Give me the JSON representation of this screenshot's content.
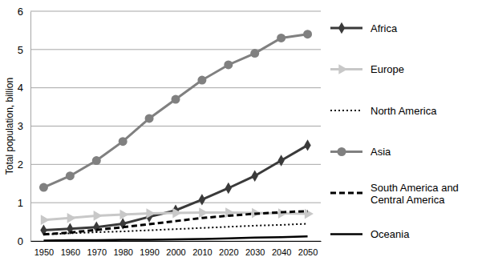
{
  "chart_data": {
    "type": "line",
    "y_label": "Total population, billion",
    "categories": [
      "1950",
      "1960",
      "1970",
      "1980",
      "1990",
      "2000",
      "2010",
      "2020",
      "2030",
      "2040",
      "2050"
    ],
    "ylim": [
      0,
      6
    ],
    "yticks": [
      0,
      1,
      2,
      3,
      4,
      5,
      6
    ],
    "grid": true,
    "legend": "right",
    "series": [
      {
        "name": "Africa",
        "color": "#3a3a3a",
        "marker": "diamond",
        "line_style": "solid",
        "values": [
          0.28,
          0.32,
          0.36,
          0.45,
          0.63,
          0.8,
          1.08,
          1.38,
          1.7,
          2.1,
          2.5
        ]
      },
      {
        "name": "Europe",
        "color": "#c8c8c8",
        "marker": "arrow",
        "line_style": "solid",
        "values": [
          0.55,
          0.6,
          0.66,
          0.69,
          0.72,
          0.73,
          0.74,
          0.74,
          0.73,
          0.72,
          0.71
        ]
      },
      {
        "name": "North America",
        "color": "#000000",
        "marker": "none",
        "line_style": "dotted",
        "values": [
          0.17,
          0.2,
          0.23,
          0.25,
          0.28,
          0.31,
          0.34,
          0.37,
          0.4,
          0.42,
          0.45
        ]
      },
      {
        "name": "Asia",
        "color": "#808080",
        "marker": "circle",
        "line_style": "solid",
        "values": [
          1.4,
          1.7,
          2.1,
          2.6,
          3.2,
          3.7,
          4.2,
          4.6,
          4.9,
          5.3,
          5.4
        ]
      },
      {
        "name": "South America and Central America",
        "color": "#000000",
        "marker": "none",
        "line_style": "dashed",
        "values": [
          0.17,
          0.22,
          0.29,
          0.36,
          0.44,
          0.52,
          0.6,
          0.66,
          0.71,
          0.75,
          0.78
        ]
      },
      {
        "name": "Oceania",
        "color": "#000000",
        "marker": "none",
        "line_style": "solid",
        "values": [
          0.01,
          0.02,
          0.02,
          0.03,
          0.03,
          0.04,
          0.05,
          0.07,
          0.09,
          0.1,
          0.12
        ]
      }
    ]
  }
}
